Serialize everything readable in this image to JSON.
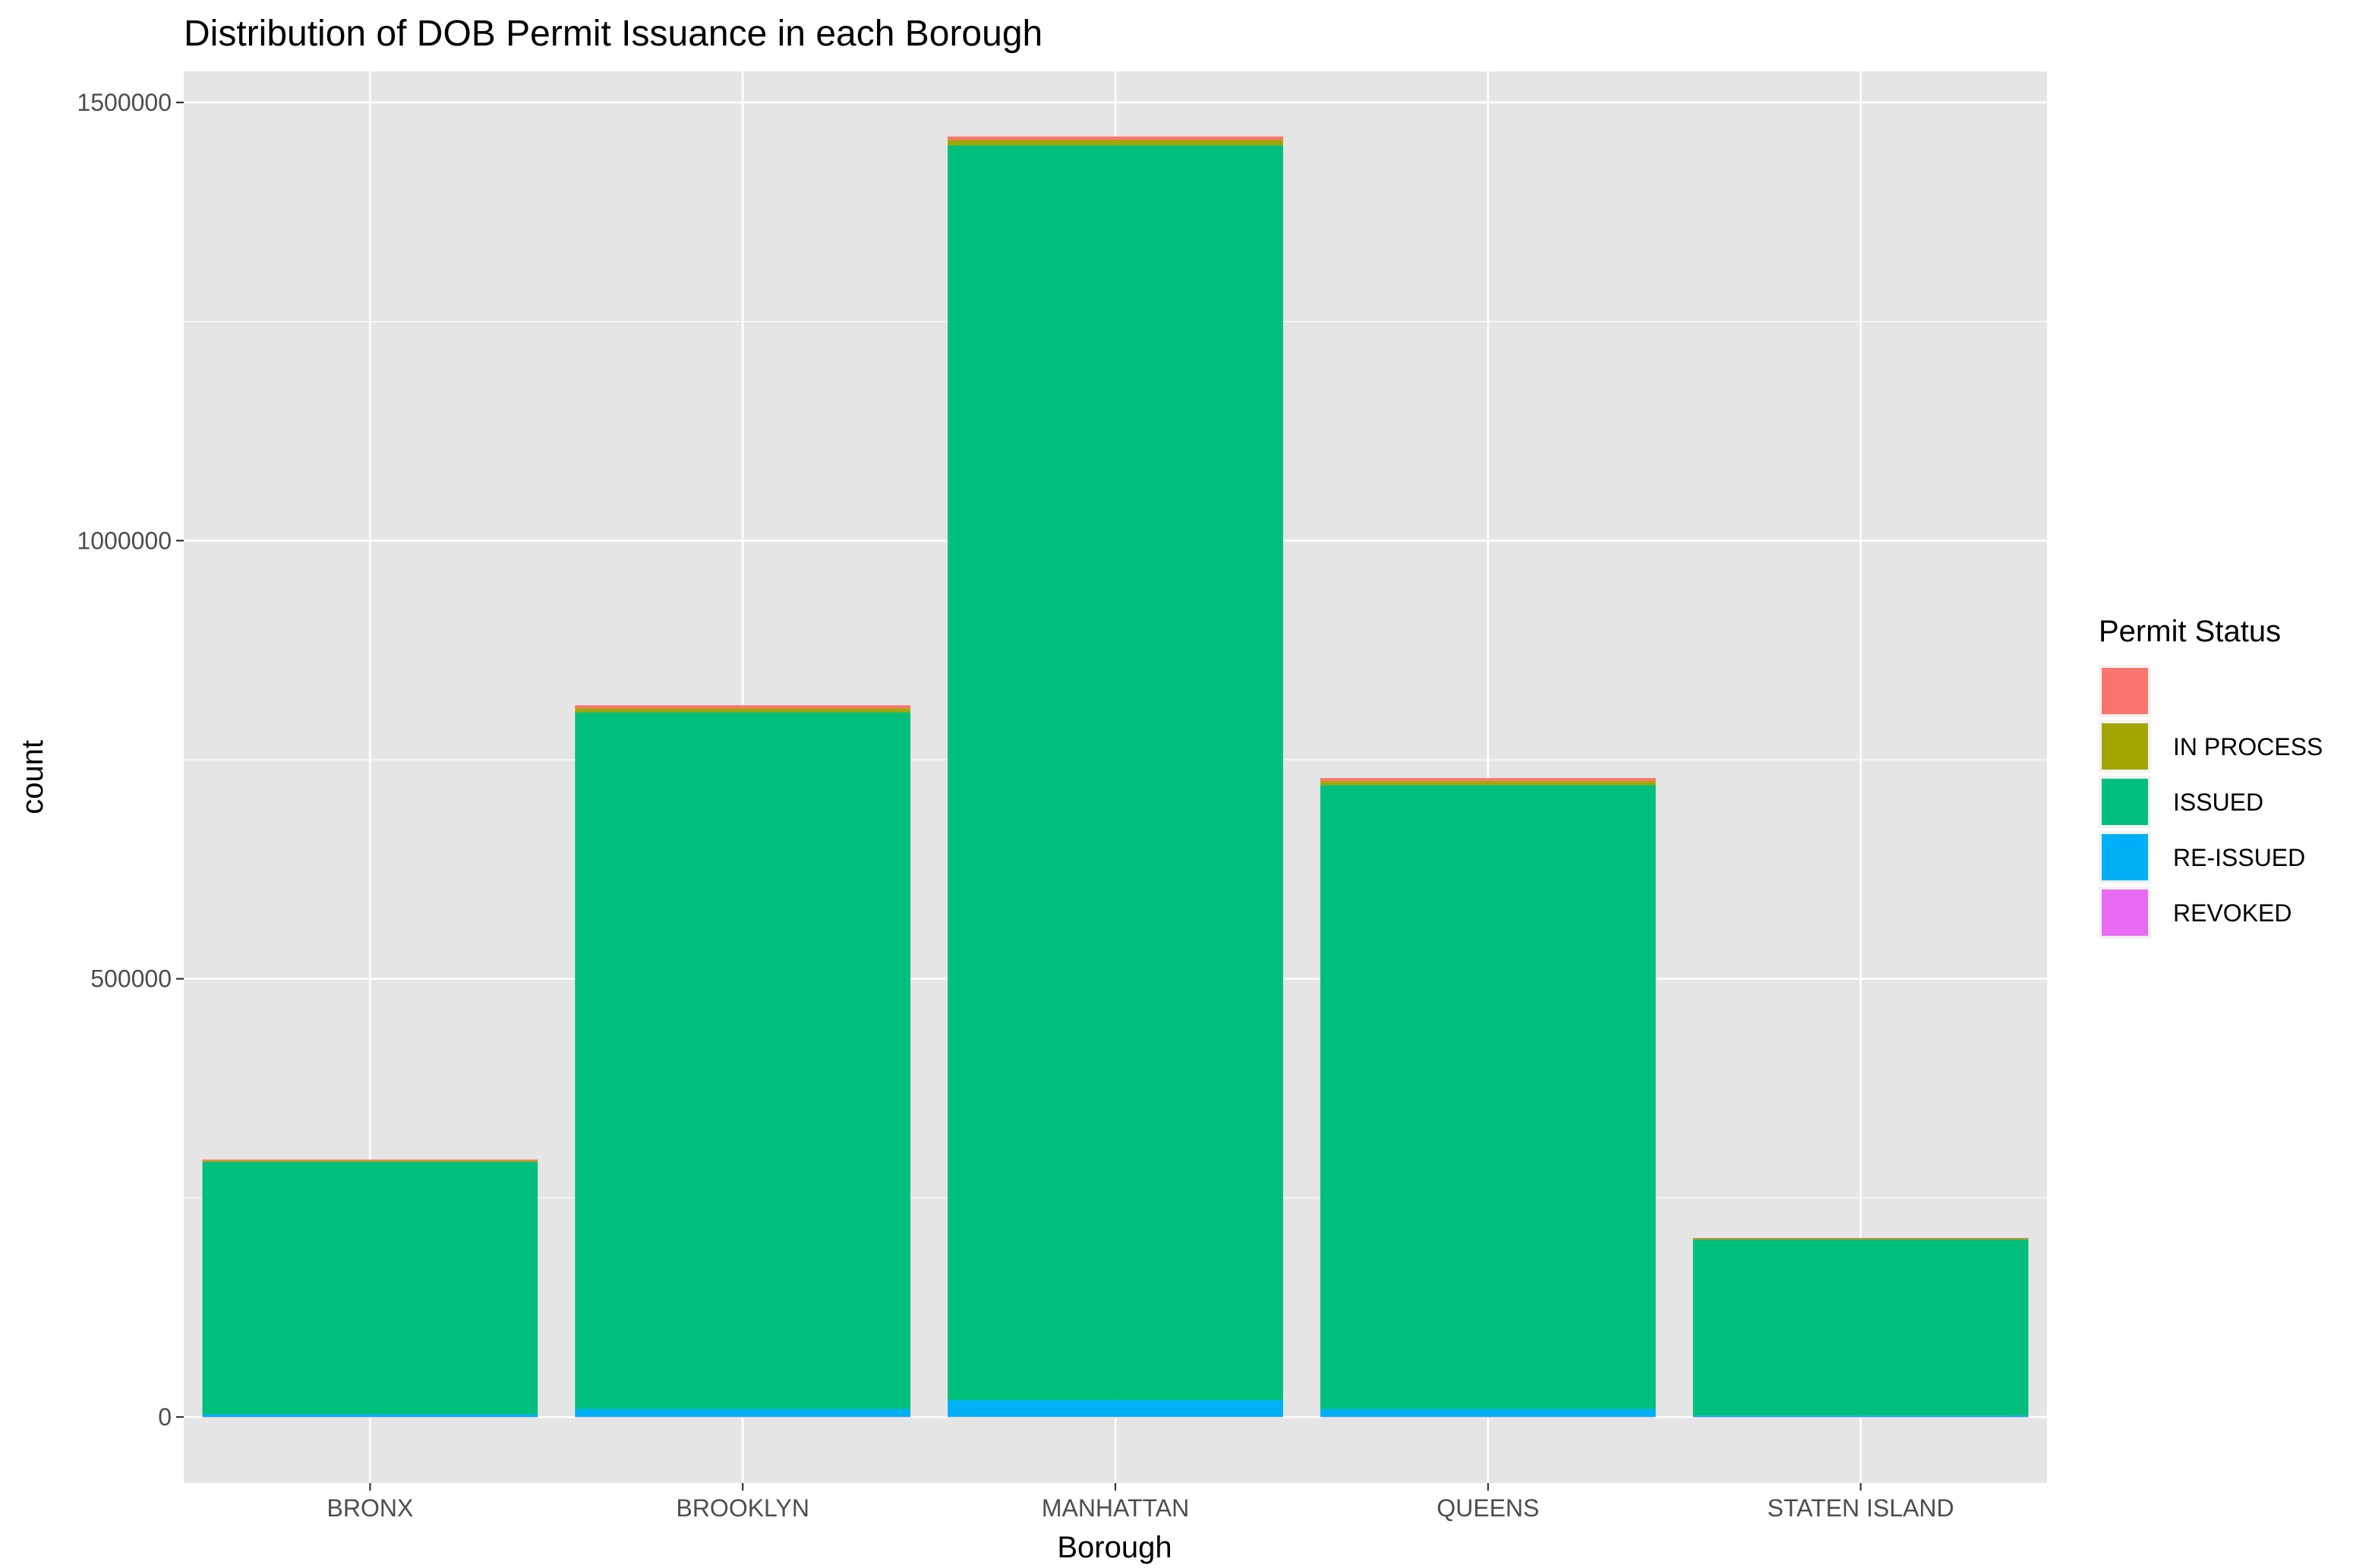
{
  "chart_data": {
    "type": "bar",
    "stacked": true,
    "title": "Distribution of DOB Permit Issuance in each Borough",
    "xlabel": "Borough",
    "ylabel": "count",
    "categories": [
      "BRONX",
      "BROOKLYN",
      "MANHATTAN",
      "QUEENS",
      "STATEN ISLAND"
    ],
    "ylim": [
      -75000,
      1520000
    ],
    "yticks": [
      0,
      500000,
      1000000,
      1500000
    ],
    "ytick_labels": [
      "0",
      "500000",
      "1000000",
      "1500000"
    ],
    "grid": true,
    "legend_position": "right",
    "legend_title": "Permit Status",
    "stack_order_bottom_to_top": [
      "REVOKED",
      "RE-ISSUED",
      "ISSUED",
      "IN PROCESS",
      ""
    ],
    "series": [
      {
        "name": "",
        "color": "#F8766D",
        "values": [
          1200,
          3500,
          4000,
          3500,
          800
        ]
      },
      {
        "name": "IN PROCESS",
        "color": "#A3A500",
        "values": [
          1500,
          4500,
          6000,
          4500,
          1000
        ]
      },
      {
        "name": "ISSUED",
        "color": "#00BF7D",
        "values": [
          288000,
          795000,
          1432000,
          712000,
          201000
        ]
      },
      {
        "name": "RE-ISSUED",
        "color": "#00B0F6",
        "values": [
          3000,
          9000,
          19000,
          9000,
          1500
        ]
      },
      {
        "name": "REVOKED",
        "color": "#E76BF3",
        "values": [
          50,
          100,
          150,
          100,
          30
        ]
      }
    ],
    "panel_color": "#E5E5E5",
    "grid_color": "#FFFFFF"
  }
}
